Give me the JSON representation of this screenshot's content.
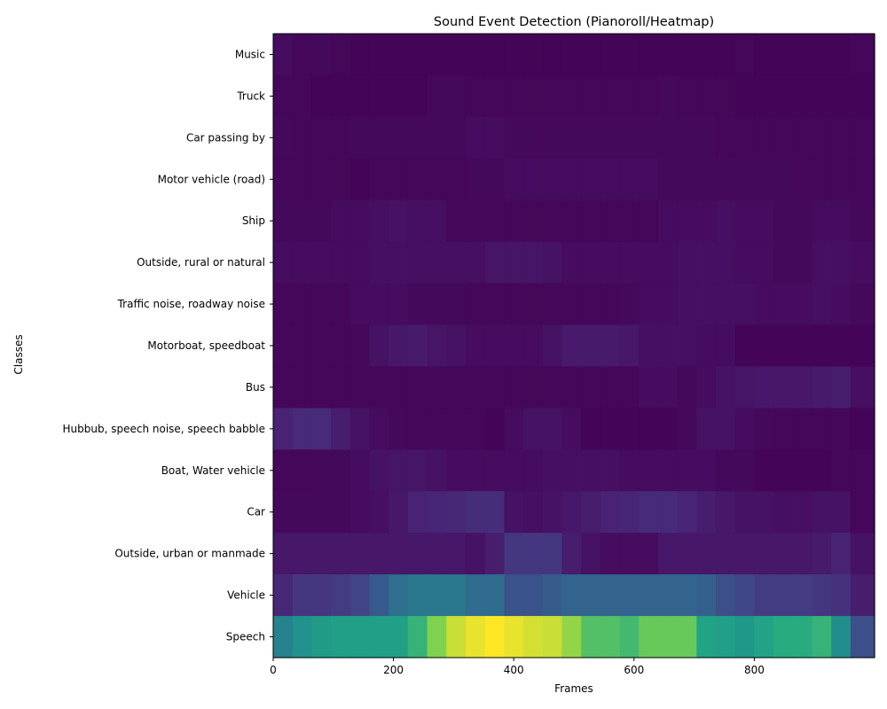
{
  "chart_data": {
    "type": "heatmap",
    "title": "Sound Event Detection (Pianoroll/Heatmap)",
    "xlabel": "Frames",
    "ylabel": "Classes",
    "xlim": [
      0,
      1000
    ],
    "x_ticks": [
      0,
      200,
      400,
      600,
      800
    ],
    "x_tick_labels": [
      "0",
      "200",
      "400",
      "600",
      "800"
    ],
    "frame_bins": [
      0,
      32,
      64,
      96,
      128,
      160,
      192,
      224,
      256,
      288,
      320,
      352,
      384,
      416,
      448,
      480,
      512,
      544,
      576,
      608,
      640,
      672,
      704,
      736,
      768,
      800,
      832,
      864,
      896,
      928,
      960,
      1000
    ],
    "colormap": "viridis",
    "value_range": [
      0,
      1
    ],
    "classes": [
      "Music",
      "Truck",
      "Car passing by",
      "Motor vehicle (road)",
      "Ship",
      "Outside, rural or natural",
      "Traffic noise, roadway noise",
      "Motorboat, speedboat",
      "Bus",
      "Hubbub, speech noise, speech babble",
      "Boat, Water vehicle",
      "Car",
      "Outside, urban or manmade",
      "Vehicle",
      "Speech"
    ],
    "values": [
      [
        0.04,
        0.02,
        0.03,
        0.02,
        0.01,
        0.01,
        0.01,
        0.01,
        0.01,
        0.01,
        0.01,
        0.01,
        0.01,
        0.01,
        0.01,
        0.01,
        0.01,
        0.01,
        0.01,
        0.01,
        0.01,
        0.01,
        0.01,
        0.01,
        0.02,
        0.01,
        0.01,
        0.01,
        0.01,
        0.01,
        0.02
      ],
      [
        0.02,
        0.02,
        0.01,
        0.01,
        0.01,
        0.01,
        0.01,
        0.01,
        0.03,
        0.03,
        0.02,
        0.02,
        0.02,
        0.02,
        0.02,
        0.02,
        0.02,
        0.02,
        0.02,
        0.02,
        0.03,
        0.02,
        0.02,
        0.02,
        0.01,
        0.01,
        0.01,
        0.01,
        0.01,
        0.01,
        0.01
      ],
      [
        0.03,
        0.02,
        0.02,
        0.02,
        0.03,
        0.03,
        0.03,
        0.03,
        0.03,
        0.03,
        0.04,
        0.04,
        0.03,
        0.03,
        0.03,
        0.03,
        0.03,
        0.03,
        0.03,
        0.03,
        0.03,
        0.03,
        0.03,
        0.02,
        0.02,
        0.02,
        0.02,
        0.02,
        0.02,
        0.02,
        0.02
      ],
      [
        0.02,
        0.02,
        0.02,
        0.02,
        0.01,
        0.02,
        0.02,
        0.02,
        0.02,
        0.02,
        0.03,
        0.03,
        0.04,
        0.04,
        0.04,
        0.04,
        0.04,
        0.04,
        0.04,
        0.04,
        0.03,
        0.03,
        0.03,
        0.03,
        0.03,
        0.03,
        0.03,
        0.02,
        0.02,
        0.02,
        0.02
      ],
      [
        0.03,
        0.03,
        0.03,
        0.04,
        0.04,
        0.05,
        0.06,
        0.05,
        0.05,
        0.02,
        0.02,
        0.02,
        0.02,
        0.02,
        0.02,
        0.02,
        0.02,
        0.02,
        0.02,
        0.02,
        0.04,
        0.04,
        0.04,
        0.05,
        0.04,
        0.04,
        0.03,
        0.03,
        0.04,
        0.04,
        0.03
      ],
      [
        0.04,
        0.04,
        0.04,
        0.04,
        0.04,
        0.05,
        0.05,
        0.05,
        0.05,
        0.05,
        0.05,
        0.07,
        0.07,
        0.07,
        0.06,
        0.04,
        0.04,
        0.04,
        0.04,
        0.04,
        0.04,
        0.05,
        0.05,
        0.05,
        0.04,
        0.04,
        0.03,
        0.03,
        0.05,
        0.05,
        0.04
      ],
      [
        0.02,
        0.02,
        0.02,
        0.02,
        0.04,
        0.04,
        0.04,
        0.03,
        0.03,
        0.03,
        0.02,
        0.02,
        0.02,
        0.02,
        0.02,
        0.02,
        0.02,
        0.02,
        0.03,
        0.04,
        0.04,
        0.05,
        0.05,
        0.05,
        0.05,
        0.04,
        0.04,
        0.04,
        0.05,
        0.04,
        0.03
      ],
      [
        0.02,
        0.02,
        0.02,
        0.02,
        0.02,
        0.06,
        0.08,
        0.09,
        0.07,
        0.06,
        0.04,
        0.04,
        0.04,
        0.04,
        0.06,
        0.09,
        0.09,
        0.09,
        0.08,
        0.05,
        0.05,
        0.05,
        0.04,
        0.04,
        0.01,
        0.01,
        0.01,
        0.01,
        0.01,
        0.01,
        0.01
      ],
      [
        0.02,
        0.02,
        0.02,
        0.02,
        0.02,
        0.02,
        0.02,
        0.02,
        0.02,
        0.02,
        0.02,
        0.02,
        0.02,
        0.02,
        0.02,
        0.02,
        0.02,
        0.02,
        0.02,
        0.04,
        0.04,
        0.03,
        0.04,
        0.06,
        0.07,
        0.08,
        0.08,
        0.08,
        0.09,
        0.1,
        0.05
      ],
      [
        0.12,
        0.15,
        0.15,
        0.1,
        0.06,
        0.04,
        0.03,
        0.02,
        0.02,
        0.02,
        0.02,
        0.01,
        0.04,
        0.06,
        0.06,
        0.04,
        0.01,
        0.01,
        0.01,
        0.01,
        0.01,
        0.03,
        0.06,
        0.06,
        0.04,
        0.03,
        0.02,
        0.02,
        0.02,
        0.02,
        0.01
      ],
      [
        0.02,
        0.02,
        0.03,
        0.03,
        0.04,
        0.06,
        0.07,
        0.07,
        0.06,
        0.04,
        0.04,
        0.04,
        0.04,
        0.04,
        0.05,
        0.05,
        0.05,
        0.05,
        0.04,
        0.04,
        0.04,
        0.04,
        0.04,
        0.03,
        0.03,
        0.01,
        0.01,
        0.01,
        0.01,
        0.02,
        0.02
      ],
      [
        0.03,
        0.03,
        0.03,
        0.03,
        0.04,
        0.05,
        0.08,
        0.12,
        0.13,
        0.14,
        0.16,
        0.16,
        0.06,
        0.05,
        0.06,
        0.08,
        0.1,
        0.12,
        0.13,
        0.15,
        0.15,
        0.13,
        0.1,
        0.08,
        0.06,
        0.06,
        0.05,
        0.05,
        0.06,
        0.06,
        0.02
      ],
      [
        0.08,
        0.08,
        0.08,
        0.08,
        0.08,
        0.08,
        0.08,
        0.08,
        0.08,
        0.08,
        0.06,
        0.1,
        0.2,
        0.2,
        0.2,
        0.1,
        0.06,
        0.04,
        0.04,
        0.04,
        0.08,
        0.08,
        0.08,
        0.08,
        0.08,
        0.08,
        0.08,
        0.08,
        0.09,
        0.12,
        0.06
      ],
      [
        0.14,
        0.2,
        0.2,
        0.22,
        0.25,
        0.35,
        0.45,
        0.5,
        0.5,
        0.5,
        0.44,
        0.44,
        0.32,
        0.32,
        0.36,
        0.4,
        0.4,
        0.4,
        0.4,
        0.4,
        0.4,
        0.4,
        0.38,
        0.3,
        0.26,
        0.22,
        0.22,
        0.22,
        0.2,
        0.18,
        0.1
      ],
      [
        0.55,
        0.63,
        0.68,
        0.7,
        0.7,
        0.7,
        0.7,
        0.78,
        0.88,
        0.95,
        0.98,
        1.0,
        0.98,
        0.96,
        0.95,
        0.9,
        0.82,
        0.82,
        0.8,
        0.85,
        0.85,
        0.85,
        0.72,
        0.7,
        0.66,
        0.72,
        0.76,
        0.76,
        0.78,
        0.6,
        0.3
      ]
    ]
  }
}
